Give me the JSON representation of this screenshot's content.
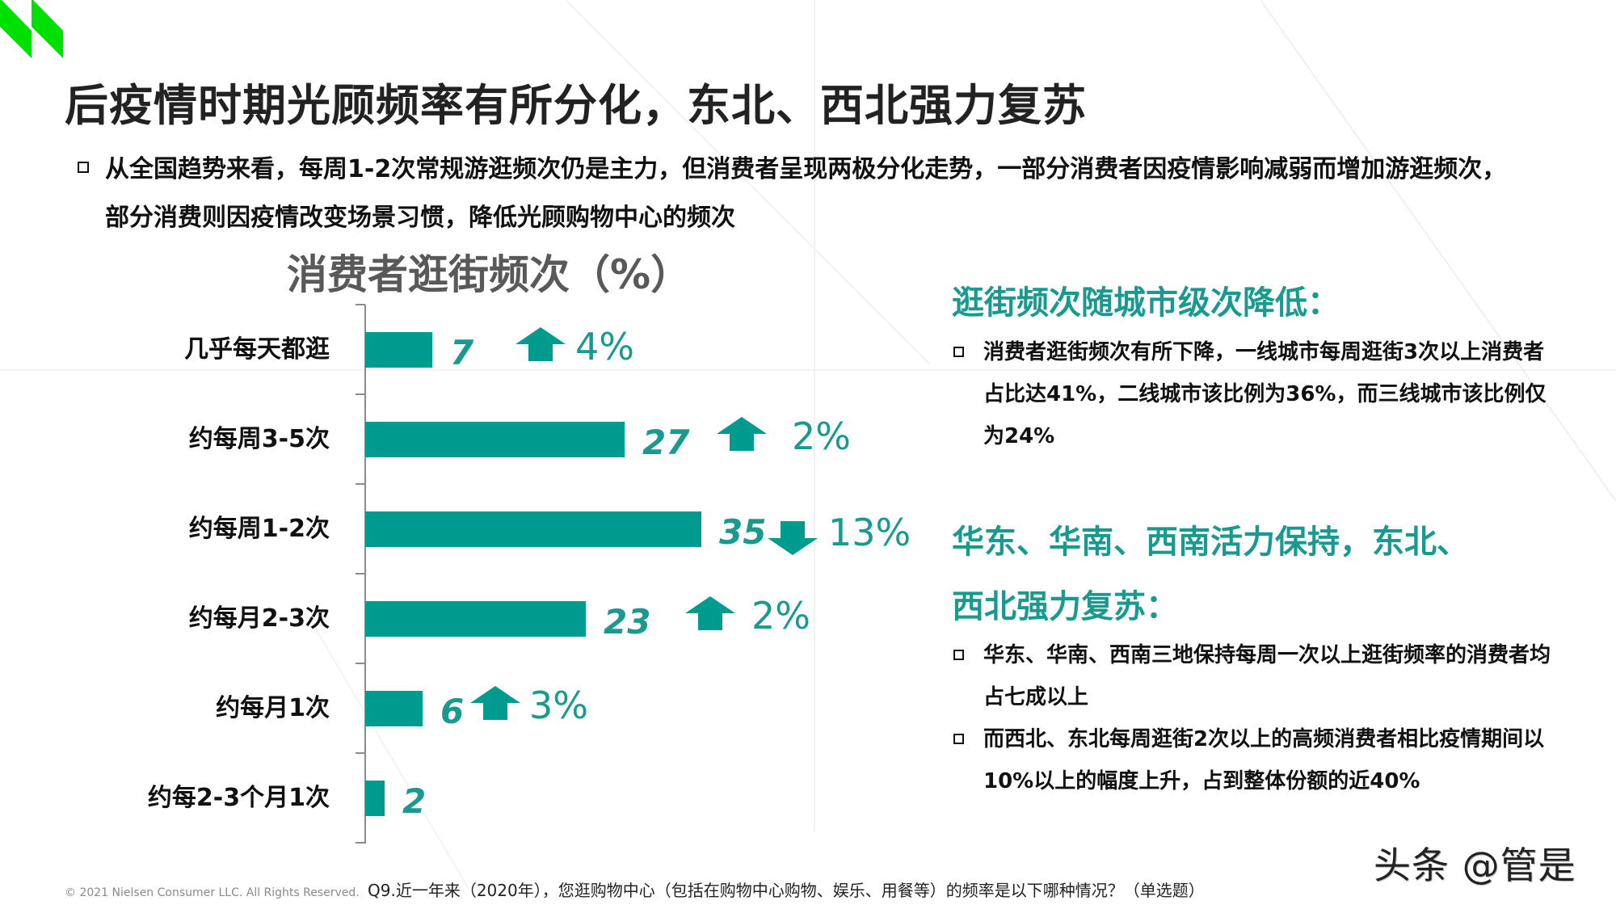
{
  "slide": {
    "title": "后疫情时期光顾频率有所分化，东北、西北强力复苏",
    "intro": "从全国趋势来看，每周1-2次常规游逛频次仍是主力，但消费者呈现两极分化走势，一部分消费者因疫情影响减弱而增加游逛频次，部分消费则因疫情改变场景习惯，降低光顾购物中心的频次"
  },
  "chart_data": {
    "type": "bar",
    "orientation": "horizontal",
    "title": "消费者逛街频次（%）",
    "categories": [
      "几乎每天都逛",
      "约每周3-5次",
      "约每周1-2次",
      "约每月2-3次",
      "约每月1次",
      "约每2-3个月1次"
    ],
    "values": [
      7,
      27,
      35,
      23,
      6,
      2
    ],
    "value_labels": [
      "7",
      "27",
      "35",
      "23",
      "6",
      "2"
    ],
    "changes": [
      {
        "direction": "up",
        "label": "4%"
      },
      {
        "direction": "up",
        "label": "2%"
      },
      {
        "direction": "down",
        "label": "13%"
      },
      {
        "direction": "up",
        "label": "2%"
      },
      {
        "direction": "up",
        "label": "3%"
      },
      null
    ],
    "xlabel": "",
    "ylabel": "",
    "xlim": [
      0,
      35
    ],
    "grid": false,
    "legend": null,
    "bar_color": "#009b8f"
  },
  "side": {
    "heading1": "逛街频次随城市级次降低：",
    "heading1_bullets": [
      "消费者逛街频次有所下降，一线城市每周逛街3次以上消费者占比达41%，二线城市该比例为36%，而三线城市该比例仅为24%"
    ],
    "heading2_line1": "华东、华南、西南活力保持，东北、",
    "heading2_line2": "西北强力复苏：",
    "heading2_bullets": [
      "华东、华南、西南三地保持每周一次以上逛街频率的消费者均占七成以上",
      "而西北、东北每周逛街2次以上的高频消费者相比疫情期间以10%以上的幅度上升，占到整体份额的近40%"
    ]
  },
  "footer": {
    "copyright": "© 2021 Nielsen Consumer LLC. All Rights Reserved.",
    "question": "Q9.近一年来（2020年），您逛购物中心（包括在购物中心购物、娱乐、用餐等）的频率是以下哪种情况？（单选题）",
    "watermark": "头条 @管是"
  },
  "colors": {
    "accent": "#1a9a8f",
    "bar": "#009b8f",
    "logo": "#00e000",
    "title": "#222222",
    "chart_title": "#595959"
  }
}
